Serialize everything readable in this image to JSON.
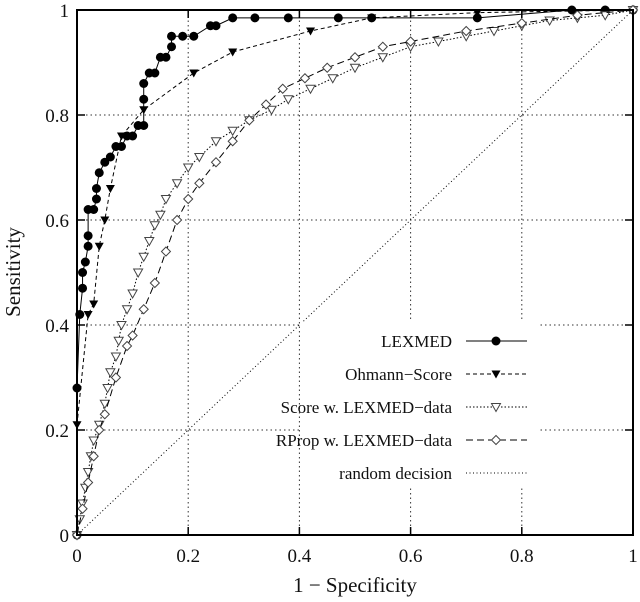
{
  "chart_data": {
    "type": "line",
    "title": "",
    "xlabel": "1 − Specificity",
    "ylabel": "Sensitivity",
    "xlim": [
      0,
      1
    ],
    "ylim": [
      0,
      1
    ],
    "grid": true,
    "legend_placement": "bottom-right",
    "xticks": [
      "0",
      "0.2",
      "0.4",
      "0.6",
      "0.8",
      "1"
    ],
    "yticks": [
      "0",
      "0.2",
      "0.4",
      "0.6",
      "0.8",
      "1"
    ],
    "series": [
      {
        "name": "LEXMED",
        "style": "solid",
        "marker": "filled-circle",
        "points": [
          [
            0,
            0
          ],
          [
            0,
            0.28
          ],
          [
            0.005,
            0.42
          ],
          [
            0.01,
            0.47
          ],
          [
            0.01,
            0.5
          ],
          [
            0.015,
            0.52
          ],
          [
            0.02,
            0.55
          ],
          [
            0.02,
            0.57
          ],
          [
            0.02,
            0.62
          ],
          [
            0.03,
            0.62
          ],
          [
            0.035,
            0.64
          ],
          [
            0.035,
            0.66
          ],
          [
            0.04,
            0.69
          ],
          [
            0.05,
            0.71
          ],
          [
            0.06,
            0.72
          ],
          [
            0.07,
            0.74
          ],
          [
            0.08,
            0.74
          ],
          [
            0.09,
            0.76
          ],
          [
            0.1,
            0.76
          ],
          [
            0.11,
            0.78
          ],
          [
            0.12,
            0.78
          ],
          [
            0.12,
            0.83
          ],
          [
            0.12,
            0.86
          ],
          [
            0.13,
            0.88
          ],
          [
            0.14,
            0.88
          ],
          [
            0.15,
            0.91
          ],
          [
            0.16,
            0.91
          ],
          [
            0.17,
            0.93
          ],
          [
            0.17,
            0.95
          ],
          [
            0.19,
            0.95
          ],
          [
            0.21,
            0.95
          ],
          [
            0.24,
            0.97
          ],
          [
            0.25,
            0.97
          ],
          [
            0.28,
            0.985
          ],
          [
            0.32,
            0.985
          ],
          [
            0.38,
            0.985
          ],
          [
            0.47,
            0.985
          ],
          [
            0.53,
            0.985
          ],
          [
            0.72,
            0.985
          ],
          [
            0.89,
            1
          ],
          [
            0.95,
            1
          ],
          [
            1,
            1
          ]
        ]
      },
      {
        "name": "Ohmann−Score",
        "style": "dashed-fine",
        "marker": "filled-triangle-down",
        "points": [
          [
            0,
            0.21
          ],
          [
            0.02,
            0.42
          ],
          [
            0.03,
            0.44
          ],
          [
            0.04,
            0.55
          ],
          [
            0.05,
            0.6
          ],
          [
            0.06,
            0.66
          ],
          [
            0.08,
            0.76
          ],
          [
            0.12,
            0.81
          ],
          [
            0.21,
            0.88
          ],
          [
            0.28,
            0.92
          ],
          [
            0.42,
            0.96
          ],
          [
            0.53,
            0.985
          ],
          [
            0.72,
            0.995
          ],
          [
            1,
            1
          ]
        ]
      },
      {
        "name": "Score w. LEXMED−data",
        "style": "dotted",
        "marker": "open-triangle-down",
        "points": [
          [
            0,
            0
          ],
          [
            0.005,
            0.03
          ],
          [
            0.01,
            0.06
          ],
          [
            0.015,
            0.09
          ],
          [
            0.02,
            0.12
          ],
          [
            0.025,
            0.15
          ],
          [
            0.03,
            0.18
          ],
          [
            0.04,
            0.21
          ],
          [
            0.05,
            0.25
          ],
          [
            0.055,
            0.28
          ],
          [
            0.06,
            0.31
          ],
          [
            0.07,
            0.34
          ],
          [
            0.075,
            0.37
          ],
          [
            0.08,
            0.4
          ],
          [
            0.09,
            0.43
          ],
          [
            0.1,
            0.46
          ],
          [
            0.11,
            0.5
          ],
          [
            0.12,
            0.53
          ],
          [
            0.13,
            0.56
          ],
          [
            0.14,
            0.59
          ],
          [
            0.15,
            0.61
          ],
          [
            0.16,
            0.64
          ],
          [
            0.18,
            0.67
          ],
          [
            0.2,
            0.7
          ],
          [
            0.22,
            0.72
          ],
          [
            0.25,
            0.75
          ],
          [
            0.28,
            0.77
          ],
          [
            0.31,
            0.79
          ],
          [
            0.35,
            0.81
          ],
          [
            0.38,
            0.83
          ],
          [
            0.42,
            0.85
          ],
          [
            0.46,
            0.87
          ],
          [
            0.5,
            0.89
          ],
          [
            0.55,
            0.91
          ],
          [
            0.6,
            0.93
          ],
          [
            0.65,
            0.94
          ],
          [
            0.7,
            0.95
          ],
          [
            0.75,
            0.96
          ],
          [
            0.8,
            0.97
          ],
          [
            0.85,
            0.98
          ],
          [
            0.9,
            0.985
          ],
          [
            0.95,
            0.99
          ],
          [
            1,
            1
          ]
        ]
      },
      {
        "name": "RProp w. LEXMED−data",
        "style": "dashed",
        "marker": "open-diamond",
        "points": [
          [
            0,
            0
          ],
          [
            0.01,
            0.05
          ],
          [
            0.02,
            0.1
          ],
          [
            0.03,
            0.15
          ],
          [
            0.04,
            0.2
          ],
          [
            0.05,
            0.23
          ],
          [
            0.07,
            0.3
          ],
          [
            0.09,
            0.36
          ],
          [
            0.1,
            0.38
          ],
          [
            0.12,
            0.43
          ],
          [
            0.14,
            0.48
          ],
          [
            0.16,
            0.54
          ],
          [
            0.18,
            0.6
          ],
          [
            0.2,
            0.64
          ],
          [
            0.22,
            0.67
          ],
          [
            0.25,
            0.71
          ],
          [
            0.28,
            0.75
          ],
          [
            0.31,
            0.79
          ],
          [
            0.34,
            0.82
          ],
          [
            0.37,
            0.85
          ],
          [
            0.41,
            0.87
          ],
          [
            0.45,
            0.89
          ],
          [
            0.5,
            0.91
          ],
          [
            0.55,
            0.93
          ],
          [
            0.6,
            0.94
          ],
          [
            0.7,
            0.96
          ],
          [
            0.8,
            0.975
          ],
          [
            0.9,
            0.99
          ],
          [
            1,
            1
          ]
        ]
      },
      {
        "name": "random decision",
        "style": "dotted-fine",
        "marker": "none",
        "points": [
          [
            0,
            0
          ],
          [
            1,
            1
          ]
        ]
      }
    ]
  }
}
